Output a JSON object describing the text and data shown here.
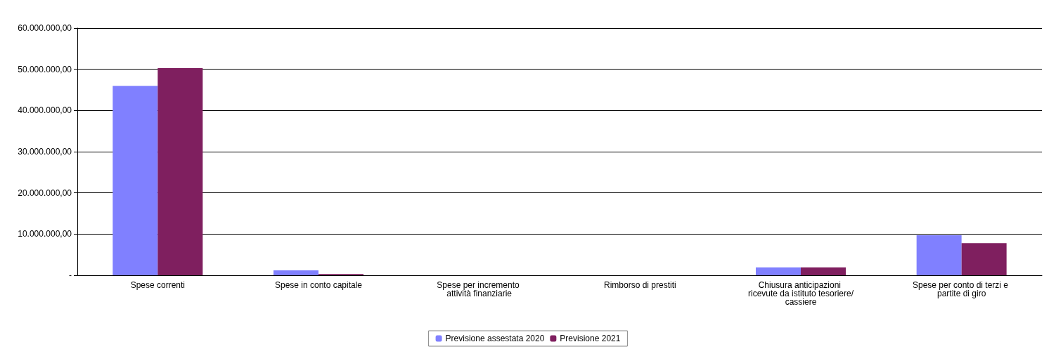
{
  "chart_data": {
    "type": "bar",
    "categories": [
      "Spese correnti",
      "Spese in conto capitale",
      "Spese per incremento attività finanziarie",
      "Rimborso di prestiti",
      "Chiusura anticipazioni ricevute da istituto tesoriere/cassiere",
      "Spese per conto di terzi e partite di giro"
    ],
    "series": [
      {
        "name": "Previsione assestata 2020",
        "color": "#8080ff",
        "values": [
          46000000,
          1200000,
          0,
          0,
          1900000,
          9700000
        ]
      },
      {
        "name": "Previsione 2021",
        "color": "#7f1f5f",
        "values": [
          50300000,
          300000,
          0,
          0,
          1900000,
          7800000
        ]
      }
    ],
    "ylim": [
      0,
      60000000
    ],
    "yticks": [
      {
        "value": 0,
        "label": "-"
      },
      {
        "value": 10000000,
        "label": "10.000.000,00"
      },
      {
        "value": 20000000,
        "label": "20.000.000,00"
      },
      {
        "value": 30000000,
        "label": "30.000.000,00"
      },
      {
        "value": 40000000,
        "label": "40.000.000,00"
      },
      {
        "value": 50000000,
        "label": "50.000.000,00"
      },
      {
        "value": 60000000,
        "label": "60.000.000,00"
      }
    ],
    "grid": "y",
    "legend": "bottom"
  }
}
